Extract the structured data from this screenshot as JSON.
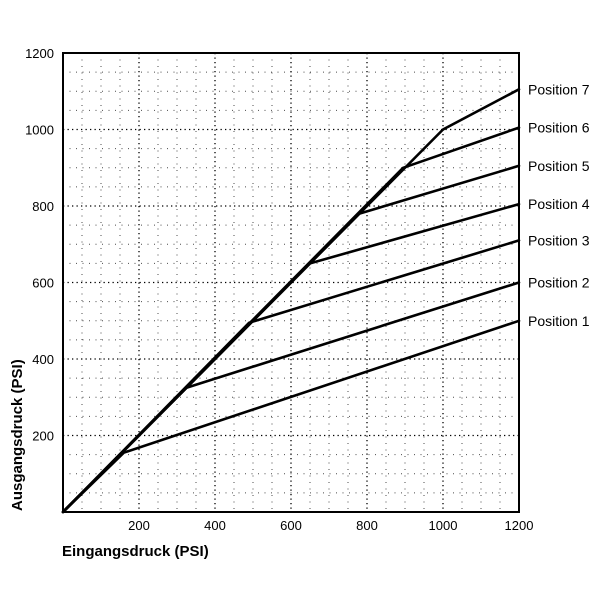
{
  "chart_data": {
    "type": "line",
    "title": "",
    "xlabel": "Eingangsdruck (PSI)",
    "ylabel": "Ausgangsdruck (PSI)",
    "xlim": [
      0,
      1200
    ],
    "ylim": [
      0,
      1200
    ],
    "x_ticks": [
      200,
      400,
      600,
      800,
      1000,
      1200
    ],
    "y_ticks": [
      200,
      400,
      600,
      800,
      1000,
      1200
    ],
    "x_tick_labels": [
      "200",
      "400",
      "600",
      "800",
      "1000",
      "1200"
    ],
    "y_tick_labels": [
      "200",
      "400",
      "600",
      "800",
      "1000",
      "1200"
    ],
    "minor_step": 50,
    "grid": true,
    "legend": "series labels at right end of lines",
    "series": [
      {
        "name": "Position 1",
        "points": [
          [
            0,
            0
          ],
          [
            160,
            155
          ],
          [
            1200,
            500
          ]
        ]
      },
      {
        "name": "Position 2",
        "points": [
          [
            0,
            0
          ],
          [
            325,
            325
          ],
          [
            1200,
            600
          ]
        ]
      },
      {
        "name": "Position 3",
        "points": [
          [
            0,
            0
          ],
          [
            490,
            495
          ],
          [
            1200,
            710
          ]
        ]
      },
      {
        "name": "Position 4",
        "points": [
          [
            0,
            0
          ],
          [
            650,
            650
          ],
          [
            1200,
            805
          ]
        ]
      },
      {
        "name": "Position 5",
        "points": [
          [
            0,
            0
          ],
          [
            780,
            780
          ],
          [
            1200,
            905
          ]
        ]
      },
      {
        "name": "Position 6",
        "points": [
          [
            0,
            0
          ],
          [
            895,
            900
          ],
          [
            1200,
            1005
          ]
        ]
      },
      {
        "name": "Position 7",
        "points": [
          [
            0,
            0
          ],
          [
            1000,
            1000
          ],
          [
            1200,
            1105
          ]
        ]
      }
    ]
  }
}
